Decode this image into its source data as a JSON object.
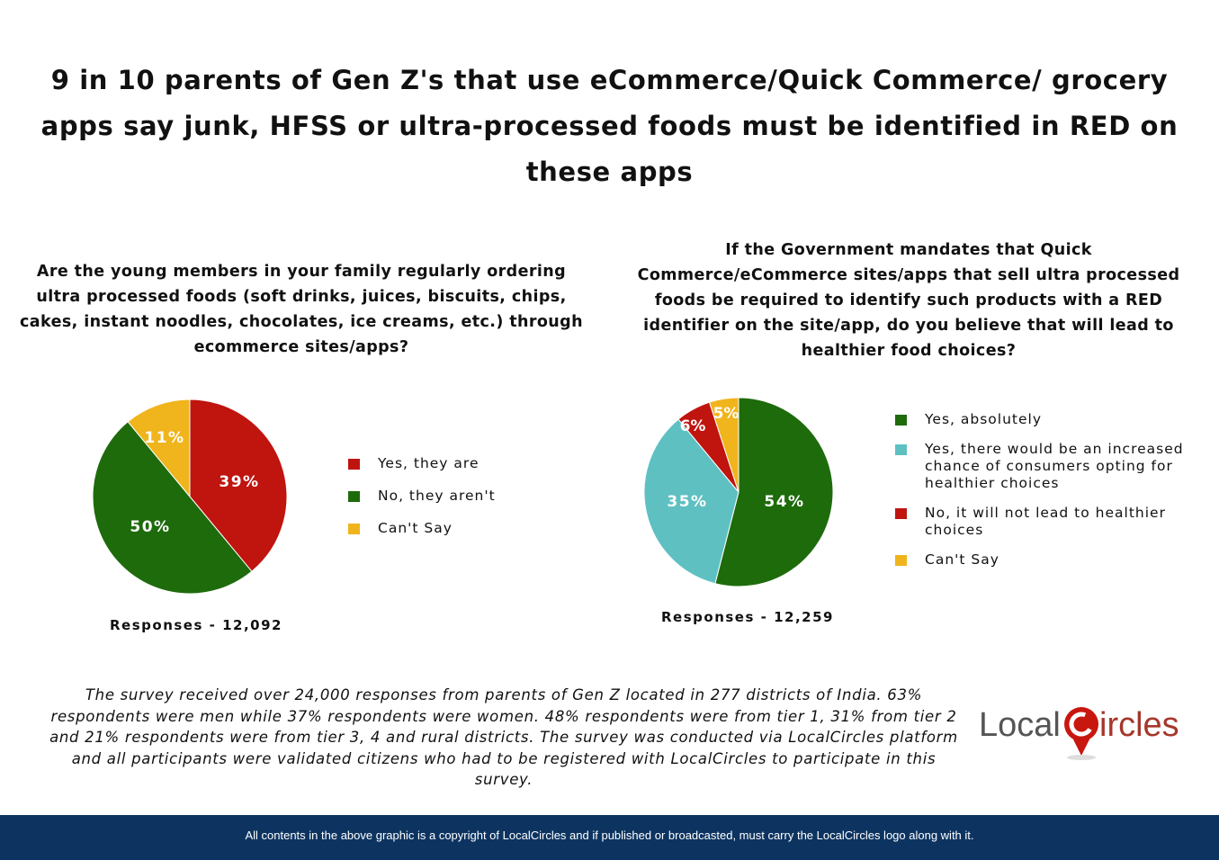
{
  "title": "9 in 10 parents of Gen Z's that use eCommerce/Quick Commerce/ grocery apps say junk, HFSS or ultra-processed foods must be identified in RED on these apps",
  "chart_data": [
    {
      "type": "pie",
      "title": "Are the young members in your family regularly ordering ultra processed foods (soft drinks, juices, biscuits, chips, cakes, instant noodles, chocolates, ice creams, etc.) through ecommerce sites/apps?",
      "categories": [
        "Yes, they are",
        "No, they aren't",
        "Can't Say"
      ],
      "values": [
        39,
        50,
        11
      ],
      "labels": [
        "39%",
        "50%",
        "11%"
      ],
      "colors": [
        "#c0140f",
        "#1e6b0c",
        "#f0b41c"
      ],
      "label_colors": [
        "#ffffff",
        "#ffffff",
        "#ffffff"
      ],
      "responses": "Responses - 12,092",
      "legend_position": "right"
    },
    {
      "type": "pie",
      "title": "If the Government mandates that Quick Commerce/eCommerce sites/apps that sell ultra processed foods be required to identify such products with a RED identifier on the site/app, do you believe that will lead to healthier food choices?",
      "categories": [
        "Yes, absolutely",
        "Yes, there would be an increased chance of consumers opting for healthier choices",
        "No, it will not lead to healthier choices",
        "Can't Say"
      ],
      "values": [
        54,
        35,
        6,
        5
      ],
      "labels": [
        "54%",
        "35%",
        "6%",
        "5%"
      ],
      "colors": [
        "#1e6b0c",
        "#5fc0c2",
        "#c0140f",
        "#f0b41c"
      ],
      "responses": "Responses - 12,259",
      "legend_position": "right"
    }
  ],
  "note": "The survey received over 24,000 responses from parents of Gen Z located in 277 districts of India. 63% respondents were men while 37% respondents were women. 48% respondents were from tier 1, 31% from tier 2 and 21% respondents were from tier 3, 4 and rural districts. The survey was conducted via LocalCircles platform and all participants were validated citizens who had to be registered with LocalCircles to participate in this survey.",
  "logo_text": "LocalCircles",
  "footer": "All contents in the above graphic is a copyright of LocalCircles and if published or broadcasted, must carry the LocalCircles logo along with it."
}
